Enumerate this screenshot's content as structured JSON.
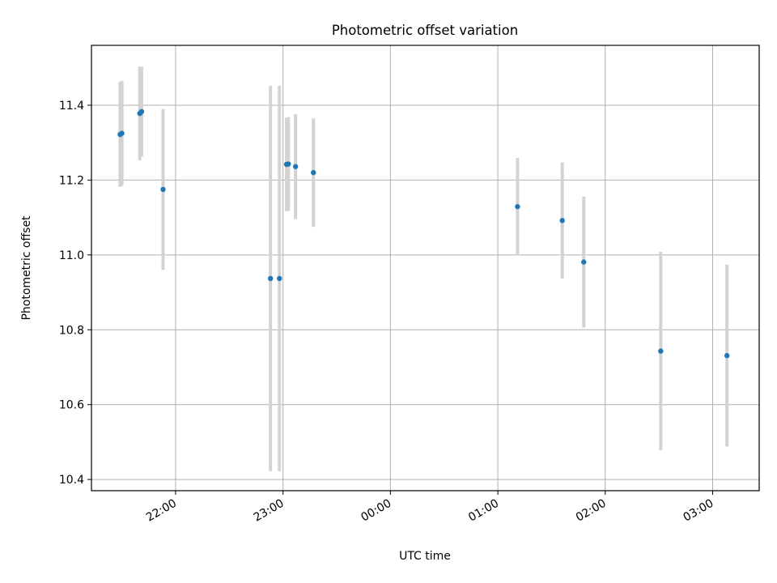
{
  "chart_data": {
    "type": "scatter",
    "title": "Photometric offset variation",
    "xlabel": "UTC time",
    "ylabel": "Photometric offset",
    "grid": true,
    "x_axis": {
      "type": "time",
      "tick_labels": [
        "22:00",
        "23:00",
        "00:00",
        "01:00",
        "02:00",
        "03:00"
      ],
      "range": [
        "21:13",
        "03:26"
      ]
    },
    "y_axis": {
      "tick_labels": [
        "10.4",
        "10.6",
        "10.8",
        "11.0",
        "11.2",
        "11.4"
      ],
      "ticks": [
        10.4,
        10.6,
        10.8,
        11.0,
        11.2,
        11.4
      ],
      "range": [
        10.37,
        11.56
      ]
    },
    "colors": {
      "points": "#1f77b4",
      "errorbars": "#d3d3d3",
      "grid": "#b0b0b0"
    },
    "series": [
      {
        "points": [
          {
            "x": "21:29",
            "y": 11.322,
            "err": 0.14
          },
          {
            "x": "21:30",
            "y": 11.325,
            "err": 0.14
          },
          {
            "x": "21:40",
            "y": 11.378,
            "err": 0.125
          },
          {
            "x": "21:41",
            "y": 11.383,
            "err": 0.12
          },
          {
            "x": "21:53",
            "y": 11.175,
            "err": 0.215
          },
          {
            "x": "22:53",
            "y": 10.937,
            "err": 0.515
          },
          {
            "x": "22:58",
            "y": 10.937,
            "err": 0.515
          },
          {
            "x": "23:02",
            "y": 11.242,
            "err": 0.125
          },
          {
            "x": "23:03",
            "y": 11.243,
            "err": 0.125
          },
          {
            "x": "23:07",
            "y": 11.236,
            "err": 0.14
          },
          {
            "x": "23:17",
            "y": 11.22,
            "err": 0.145
          },
          {
            "x": "01:11",
            "y": 11.129,
            "err": 0.13
          },
          {
            "x": "01:36",
            "y": 11.092,
            "err": 0.155
          },
          {
            "x": "01:48",
            "y": 10.981,
            "err": 0.175
          },
          {
            "x": "02:31",
            "y": 10.743,
            "err": 0.265
          },
          {
            "x": "03:08",
            "y": 10.731,
            "err": 0.243
          }
        ]
      }
    ]
  }
}
